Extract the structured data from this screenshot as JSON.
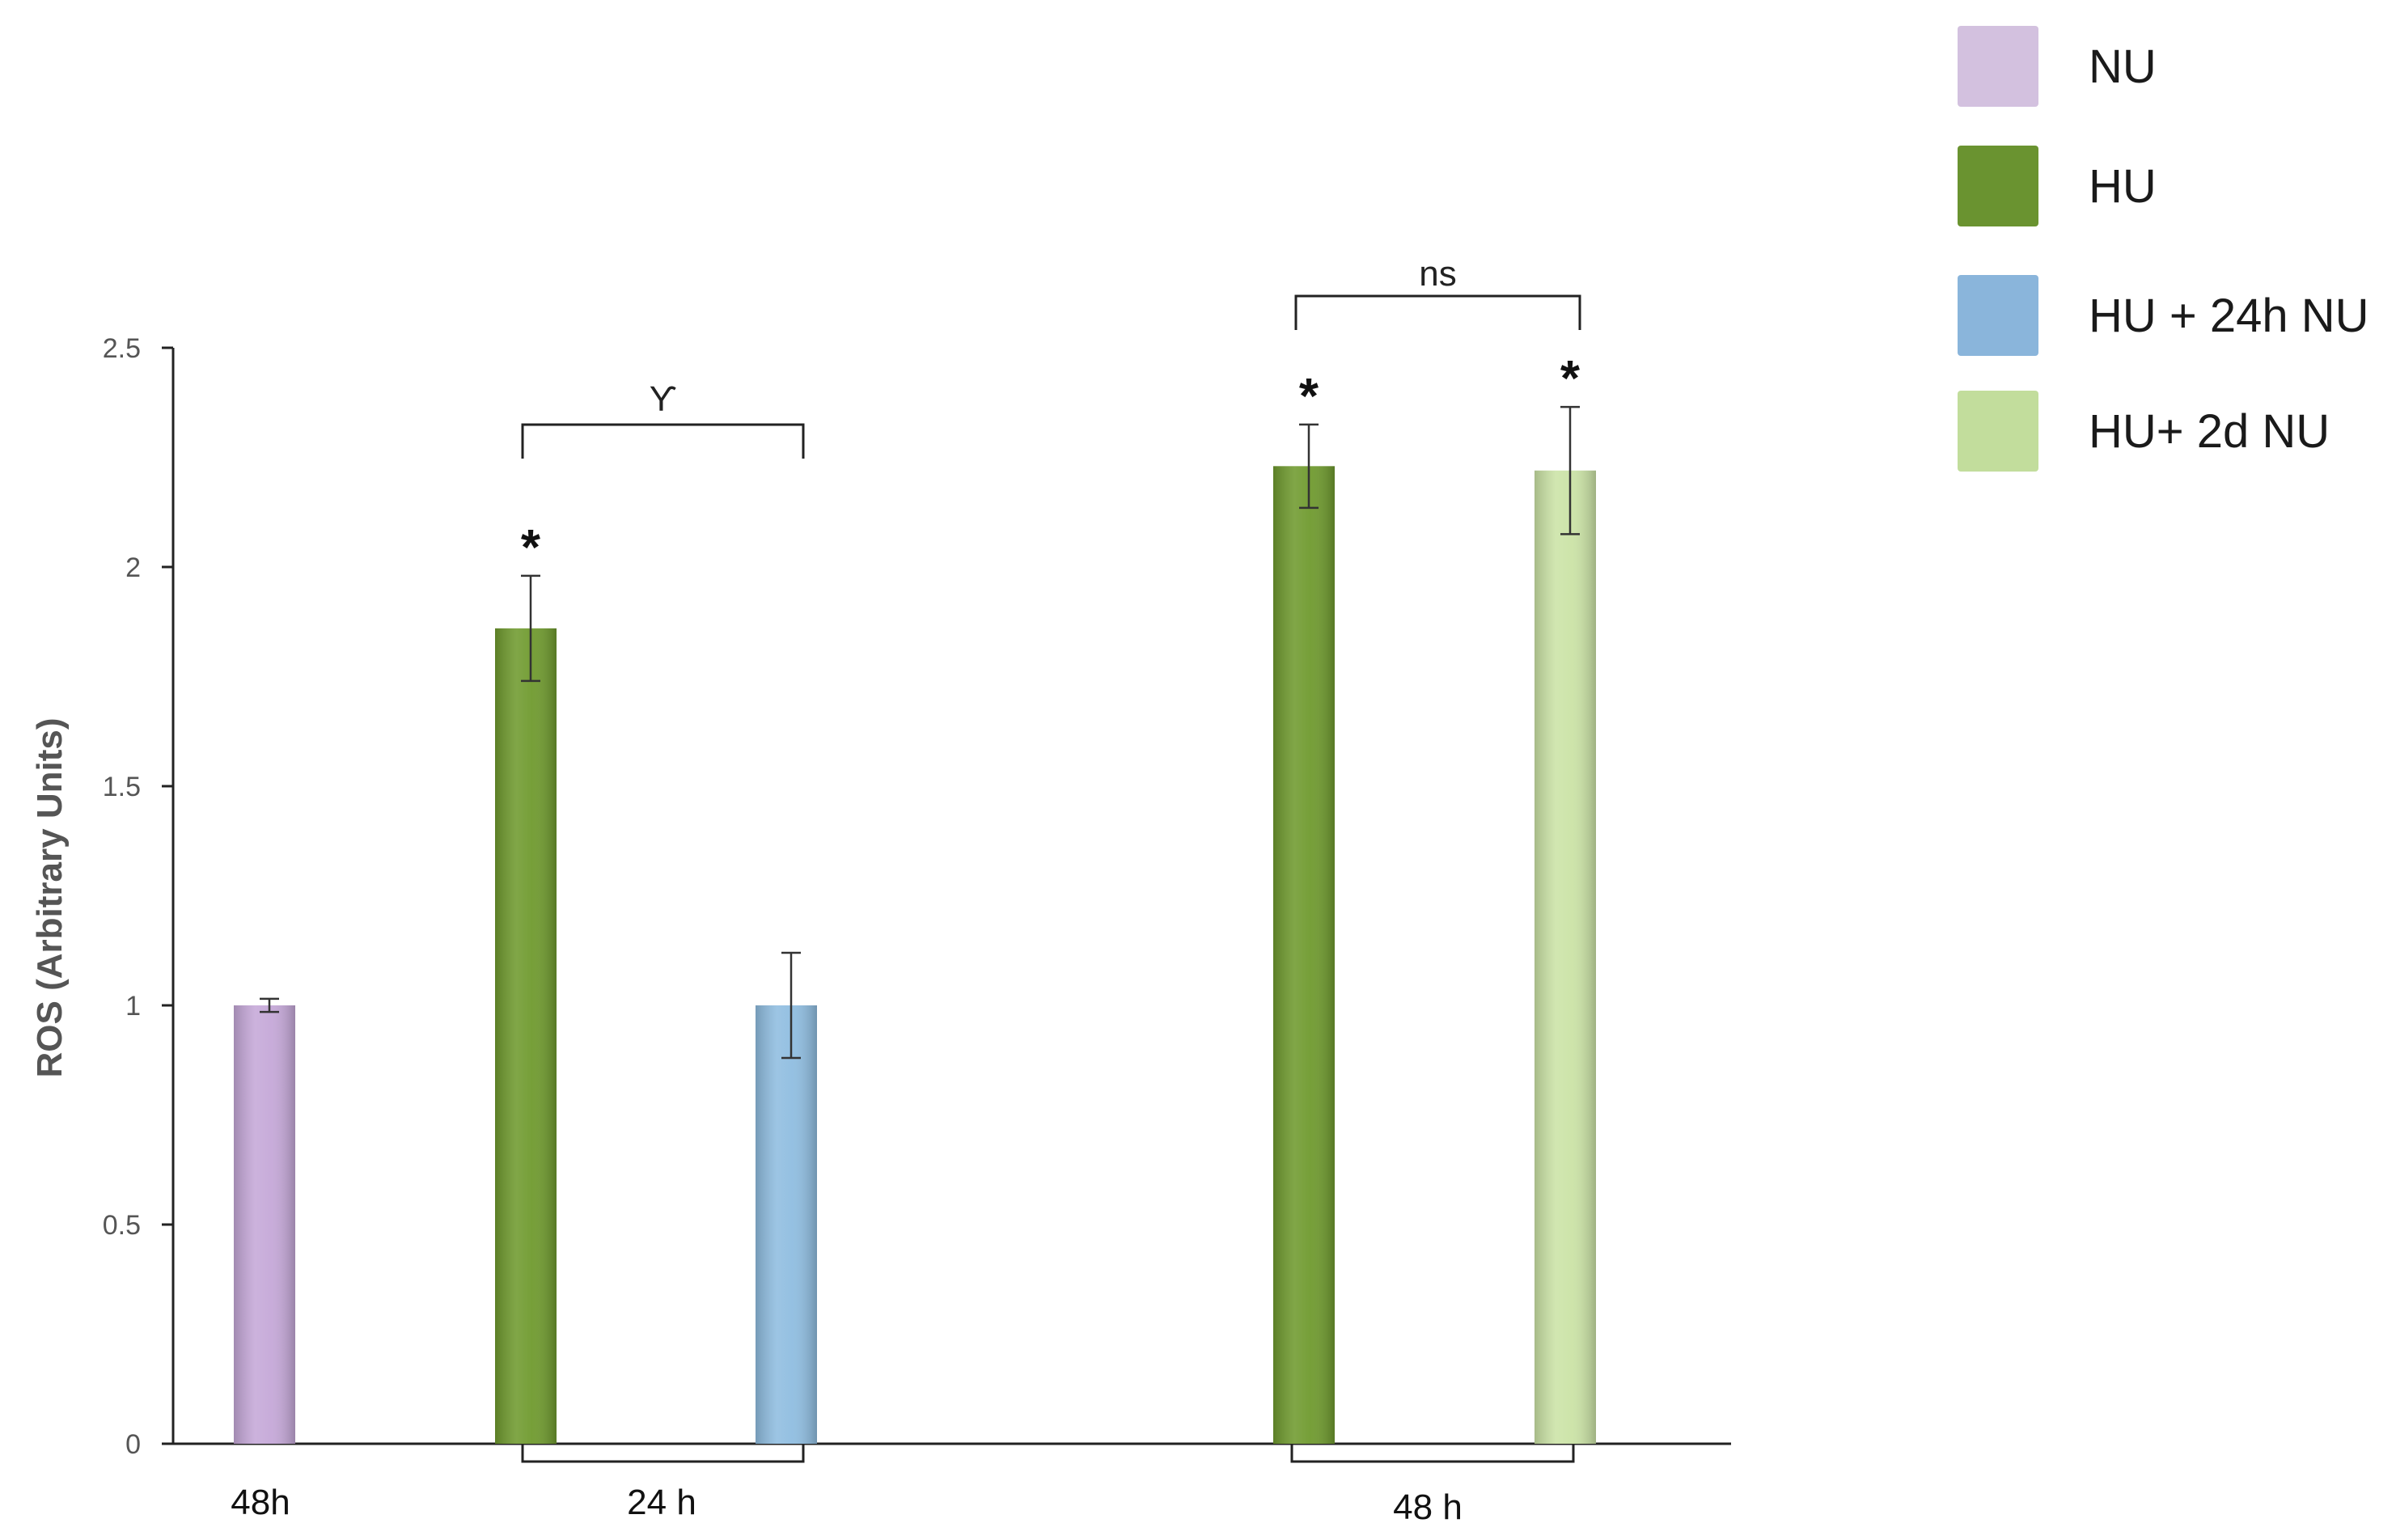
{
  "chart_data": {
    "type": "bar",
    "ylabel": "ROS (Arbitrary Units)",
    "ylim": [
      0,
      2.5
    ],
    "yticks": [
      "0",
      "0.5",
      "1",
      "1.5",
      "2",
      "2.5"
    ],
    "grid": false,
    "legend_position": "top-right",
    "bars": [
      {
        "series": "NU",
        "value": 1.0,
        "error": 0.015,
        "color": "#c5a8d8",
        "sig": ""
      },
      {
        "series": "HU",
        "value": 1.86,
        "error": 0.12,
        "color": "#6f9a2e",
        "sig": "*"
      },
      {
        "series": "HU + 24h NU",
        "value": 1.0,
        "error": 0.12,
        "color": "#8fbde0",
        "sig": ""
      },
      {
        "series": "HU",
        "value": 2.23,
        "error": 0.095,
        "color": "#6f9a2e",
        "sig": "*"
      },
      {
        "series": "HU+ 2d NU",
        "value": 2.22,
        "error": 0.145,
        "color": "#cbe3a6",
        "sig": "*"
      }
    ],
    "group_labels": [
      "48h",
      "24 h",
      "48 h"
    ],
    "comparisons": [
      {
        "label": "ϒ"
      },
      {
        "label": "ns"
      }
    ],
    "legend": [
      {
        "label": "NU",
        "color": "#d3c1df"
      },
      {
        "label": "HU",
        "color": "#6a9330"
      },
      {
        "label": "HU + 24h NU",
        "color": "#8ab5db"
      },
      {
        "label": "HU+ 2d NU",
        "color": "#c2dd9c"
      }
    ]
  }
}
